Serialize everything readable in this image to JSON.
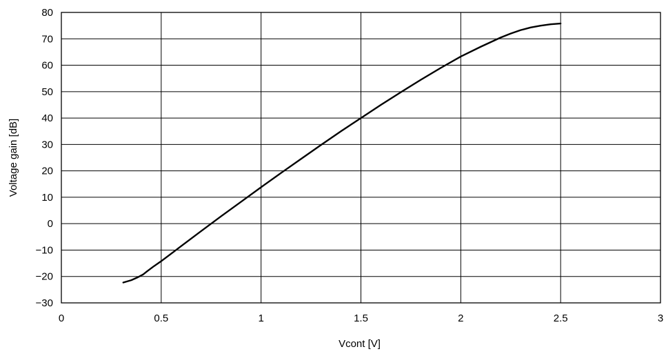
{
  "chart_data": {
    "type": "line",
    "title": "",
    "xlabel": "Vcont [V]",
    "ylabel": "Voltage gain [dB]",
    "xlim": [
      0,
      3
    ],
    "ylim": [
      -30,
      80
    ],
    "x_ticks": [
      0,
      0.5,
      1,
      1.5,
      2,
      2.5,
      3
    ],
    "x_tick_labels": [
      "0",
      "0.5",
      "1",
      "1.5",
      "2",
      "2.5",
      "3"
    ],
    "y_ticks": [
      -30,
      -20,
      -10,
      0,
      10,
      20,
      30,
      40,
      50,
      60,
      70,
      80
    ],
    "y_tick_labels": [
      "−30",
      "−20",
      "−10",
      "0",
      "10",
      "20",
      "30",
      "40",
      "50",
      "60",
      "70",
      "80"
    ],
    "grid": true,
    "series": [
      {
        "x": [
          0.31,
          0.35,
          0.38,
          0.41,
          0.43,
          0.46,
          0.5,
          0.6,
          0.7,
          0.8,
          0.9,
          1.0,
          1.1,
          1.2,
          1.3,
          1.4,
          1.5,
          1.6,
          1.7,
          1.8,
          1.9,
          2.0,
          2.1,
          2.2,
          2.25,
          2.3,
          2.35,
          2.4,
          2.45,
          2.5
        ],
        "y": [
          -22.3,
          -21.4,
          -20.4,
          -19.2,
          -18.0,
          -16.3,
          -14.2,
          -8.5,
          -2.8,
          2.8,
          8.3,
          13.8,
          19.2,
          24.5,
          29.8,
          35.0,
          40.0,
          45.0,
          49.8,
          54.5,
          59.0,
          63.3,
          67.0,
          70.5,
          72.0,
          73.3,
          74.3,
          75.0,
          75.5,
          75.8
        ]
      }
    ]
  }
}
